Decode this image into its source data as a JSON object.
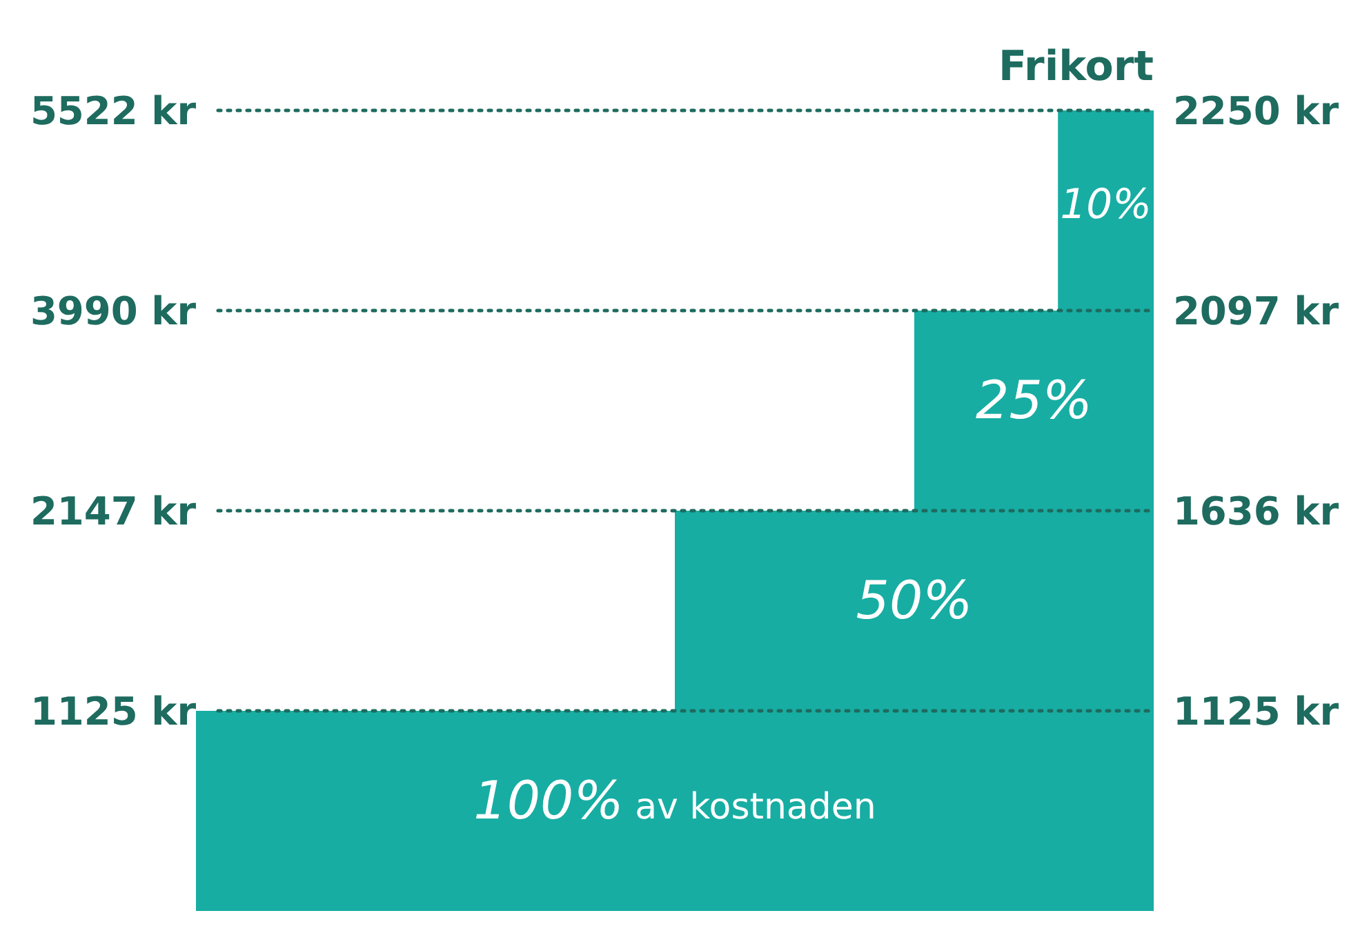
{
  "chart_data": {
    "type": "other",
    "title": "Frikort",
    "values": [
      10,
      25,
      50,
      100
    ],
    "value_labels": [
      "10%",
      "25%",
      "50%",
      "100%"
    ],
    "color": "#17ada3",
    "annotations": [
      "5522 kr",
      "2250 kr",
      "3990 kr",
      "2097 kr",
      "2147 kr",
      "1636 kr",
      "1125 kr",
      "1125 kr",
      "av kostnaden"
    ]
  }
}
